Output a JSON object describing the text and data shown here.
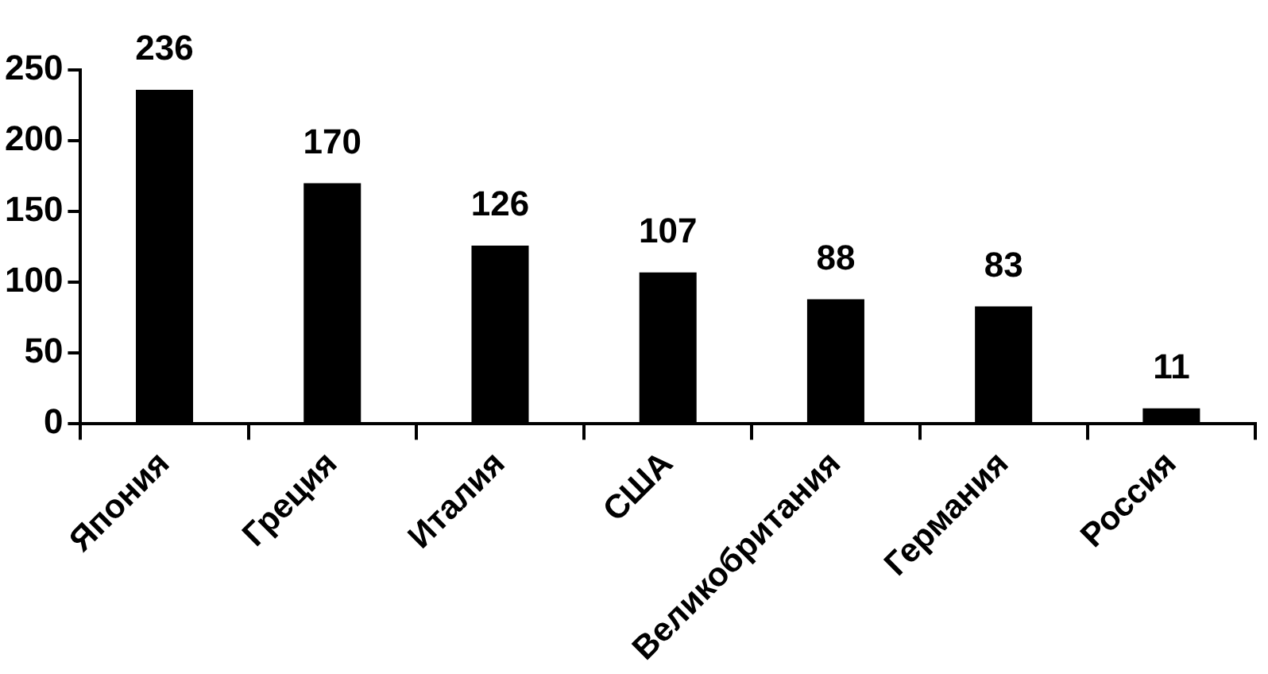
{
  "chart_data": {
    "type": "bar",
    "categories": [
      "Япония",
      "Греция",
      "Италия",
      "США",
      "Великобритания",
      "Германия",
      "Россия"
    ],
    "values": [
      236,
      170,
      126,
      107,
      88,
      83,
      11
    ],
    "color": "#000000",
    "ylim": [
      0,
      250
    ],
    "yticks": [
      0,
      50,
      100,
      150,
      200,
      250
    ],
    "grid": false,
    "legend": false,
    "data_labels": true
  }
}
